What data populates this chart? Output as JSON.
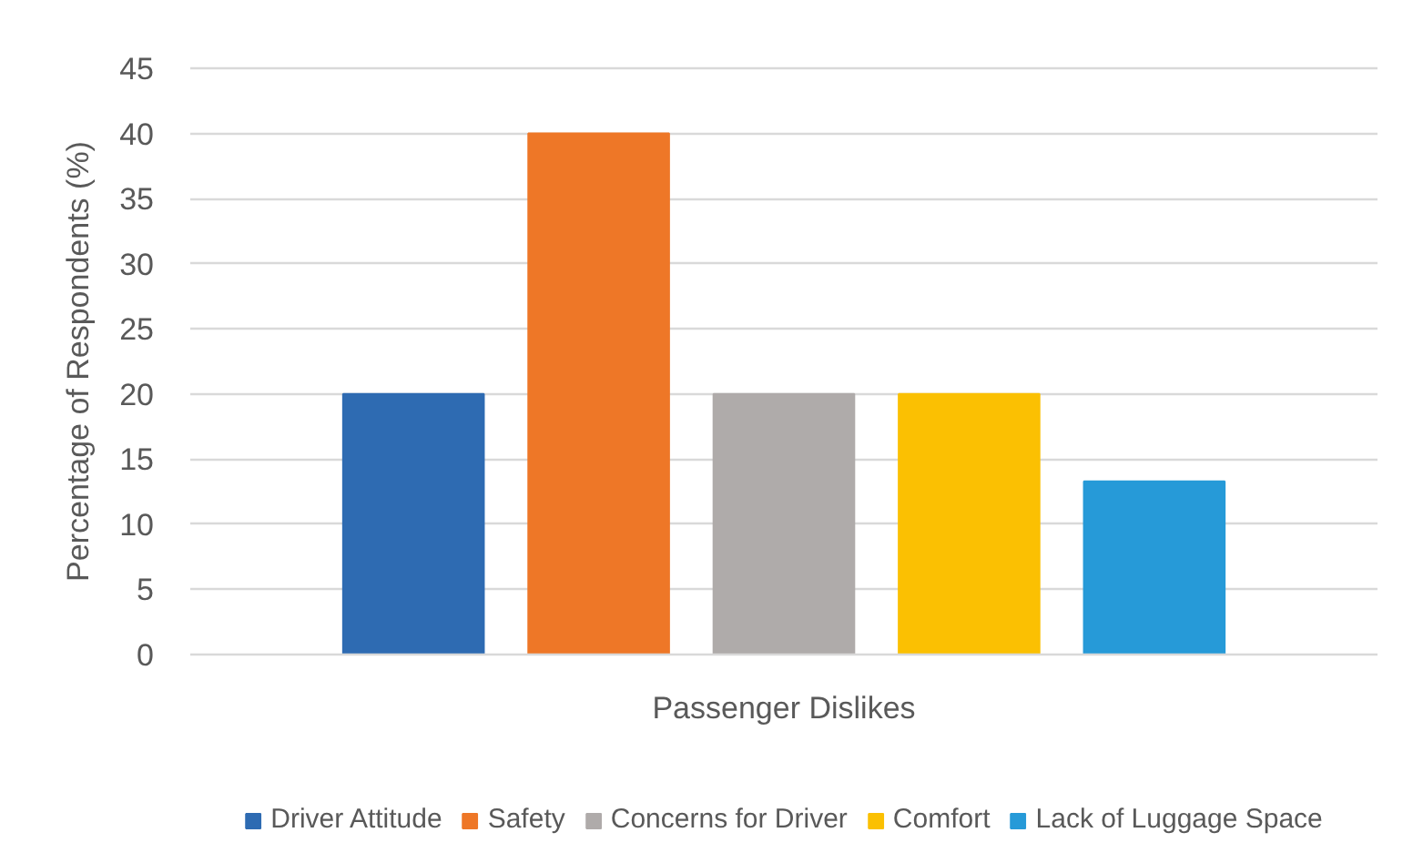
{
  "chart_data": {
    "type": "bar",
    "categories": [
      "Passenger Dislikes"
    ],
    "series": [
      {
        "name": "Driver Attitude",
        "color": "#2e6bb2",
        "values": [
          20
        ]
      },
      {
        "name": "Safety",
        "color": "#ee7727",
        "values": [
          40
        ]
      },
      {
        "name": "Concerns for Driver",
        "color": "#afabaa",
        "values": [
          20
        ]
      },
      {
        "name": "Comfort",
        "color": "#fbc002",
        "values": [
          20
        ]
      },
      {
        "name": "Lack of Luggage Space",
        "color": "#269ad8",
        "values": [
          13.3
        ]
      }
    ],
    "ylabel": "Percentage of Respondents (%)",
    "ylim": [
      0,
      45
    ],
    "yticks": [
      0,
      5,
      10,
      15,
      20,
      25,
      30,
      35,
      40,
      45
    ],
    "grid": "y",
    "legend": "bottom"
  }
}
